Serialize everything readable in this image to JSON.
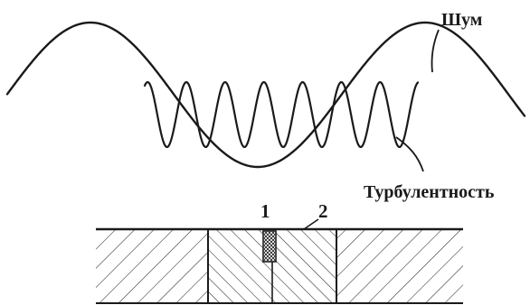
{
  "labels": {
    "noise": "Шум",
    "turbulence": "Турбулентность",
    "part1": "1",
    "part2": "2"
  },
  "colors": {
    "ink": "#1a1a1a",
    "background": "#ffffff"
  }
}
